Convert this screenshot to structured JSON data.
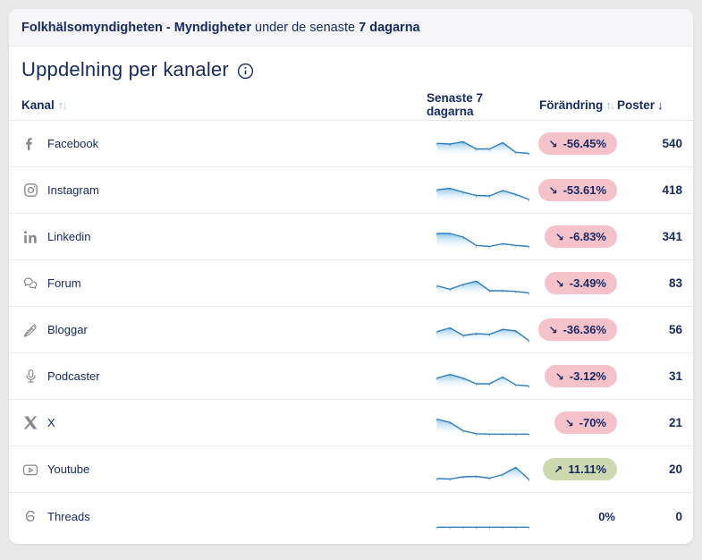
{
  "header": {
    "title_bold": "Folkhälsomyndigheten - Myndigheter",
    "subtitle": " under de senaste ",
    "period": "7 dagarna"
  },
  "section": {
    "title": "Uppdelning per kanaler"
  },
  "table": {
    "columns": [
      {
        "label": "Kanal",
        "sort": "both"
      },
      {
        "label": "Senaste 7 dagarna",
        "sort": "none"
      },
      {
        "label": "Förändring",
        "sort": "both"
      },
      {
        "label": "Poster",
        "sort": "desc-active"
      }
    ],
    "sort_arrows": {
      "up": "↑",
      "down": "↓"
    },
    "rows": [
      {
        "channel": "Facebook",
        "icon": "facebook-icon",
        "change": "-56.45%",
        "direction": "down",
        "posts": "540"
      },
      {
        "channel": "Instagram",
        "icon": "instagram-icon",
        "change": "-53.61%",
        "direction": "down",
        "posts": "418"
      },
      {
        "channel": "Linkedin",
        "icon": "linkedin-icon",
        "change": "-6.83%",
        "direction": "down",
        "posts": "341"
      },
      {
        "channel": "Forum",
        "icon": "forum-icon",
        "change": "-3.49%",
        "direction": "down",
        "posts": "83"
      },
      {
        "channel": "Bloggar",
        "icon": "blog-pen-icon",
        "change": "-36.36%",
        "direction": "down",
        "posts": "56"
      },
      {
        "channel": "Podcaster",
        "icon": "microphone-icon",
        "change": "-3.12%",
        "direction": "down",
        "posts": "31"
      },
      {
        "channel": "X",
        "icon": "x-icon",
        "change": "-70%",
        "direction": "down",
        "posts": "21"
      },
      {
        "channel": "Youtube",
        "icon": "youtube-icon",
        "change": "11.11%",
        "direction": "up",
        "posts": "20"
      },
      {
        "channel": "Threads",
        "icon": "threads-icon",
        "change": "0%",
        "direction": "neutral",
        "posts": "0"
      }
    ]
  },
  "badges": {
    "arrow_up": "↗",
    "arrow_down": "↘",
    "pink": "#f5c2ca",
    "green": "#ccd8ae"
  },
  "chart_data": {
    "type": "line",
    "note": "sparklines, 8 samples over 'Senaste 7 dagarna', values normalized 0-1",
    "series": [
      {
        "name": "Facebook",
        "values": [
          0.55,
          0.52,
          0.62,
          0.3,
          0.3,
          0.58,
          0.15,
          0.1
        ]
      },
      {
        "name": "Instagram",
        "values": [
          0.55,
          0.62,
          0.45,
          0.3,
          0.28,
          0.52,
          0.35,
          0.12
        ]
      },
      {
        "name": "Linkedin",
        "values": [
          0.68,
          0.68,
          0.52,
          0.15,
          0.1,
          0.22,
          0.15,
          0.1
        ]
      },
      {
        "name": "Forum",
        "values": [
          0.42,
          0.27,
          0.48,
          0.63,
          0.2,
          0.2,
          0.17,
          0.1
        ]
      },
      {
        "name": "Bloggar",
        "values": [
          0.45,
          0.62,
          0.28,
          0.36,
          0.33,
          0.55,
          0.48,
          0.05
        ]
      },
      {
        "name": "Podcaster",
        "values": [
          0.45,
          0.62,
          0.45,
          0.2,
          0.2,
          0.5,
          0.15,
          0.1
        ]
      },
      {
        "name": "X",
        "values": [
          0.7,
          0.55,
          0.18,
          0.05,
          0.03,
          0.03,
          0.03,
          0.03
        ]
      },
      {
        "name": "Youtube",
        "values": [
          0.12,
          0.1,
          0.2,
          0.22,
          0.14,
          0.3,
          0.62,
          0.08
        ]
      },
      {
        "name": "Threads",
        "values": [
          0.03,
          0.03,
          0.03,
          0.03,
          0.03,
          0.03,
          0.03,
          0.03
        ]
      }
    ]
  },
  "colors": {
    "navy_text": "#172b63",
    "page_bg": "#e9e9ea",
    "card_bg": "#ffffff",
    "topbar_bg": "#f6f6f8",
    "icon_gray": "#87878d",
    "spark_stroke": "#2e7fc0",
    "spark_fill_top": "#85c4ea",
    "badge_pink": "#f5c2ca",
    "badge_green": "#ccd8ae"
  }
}
